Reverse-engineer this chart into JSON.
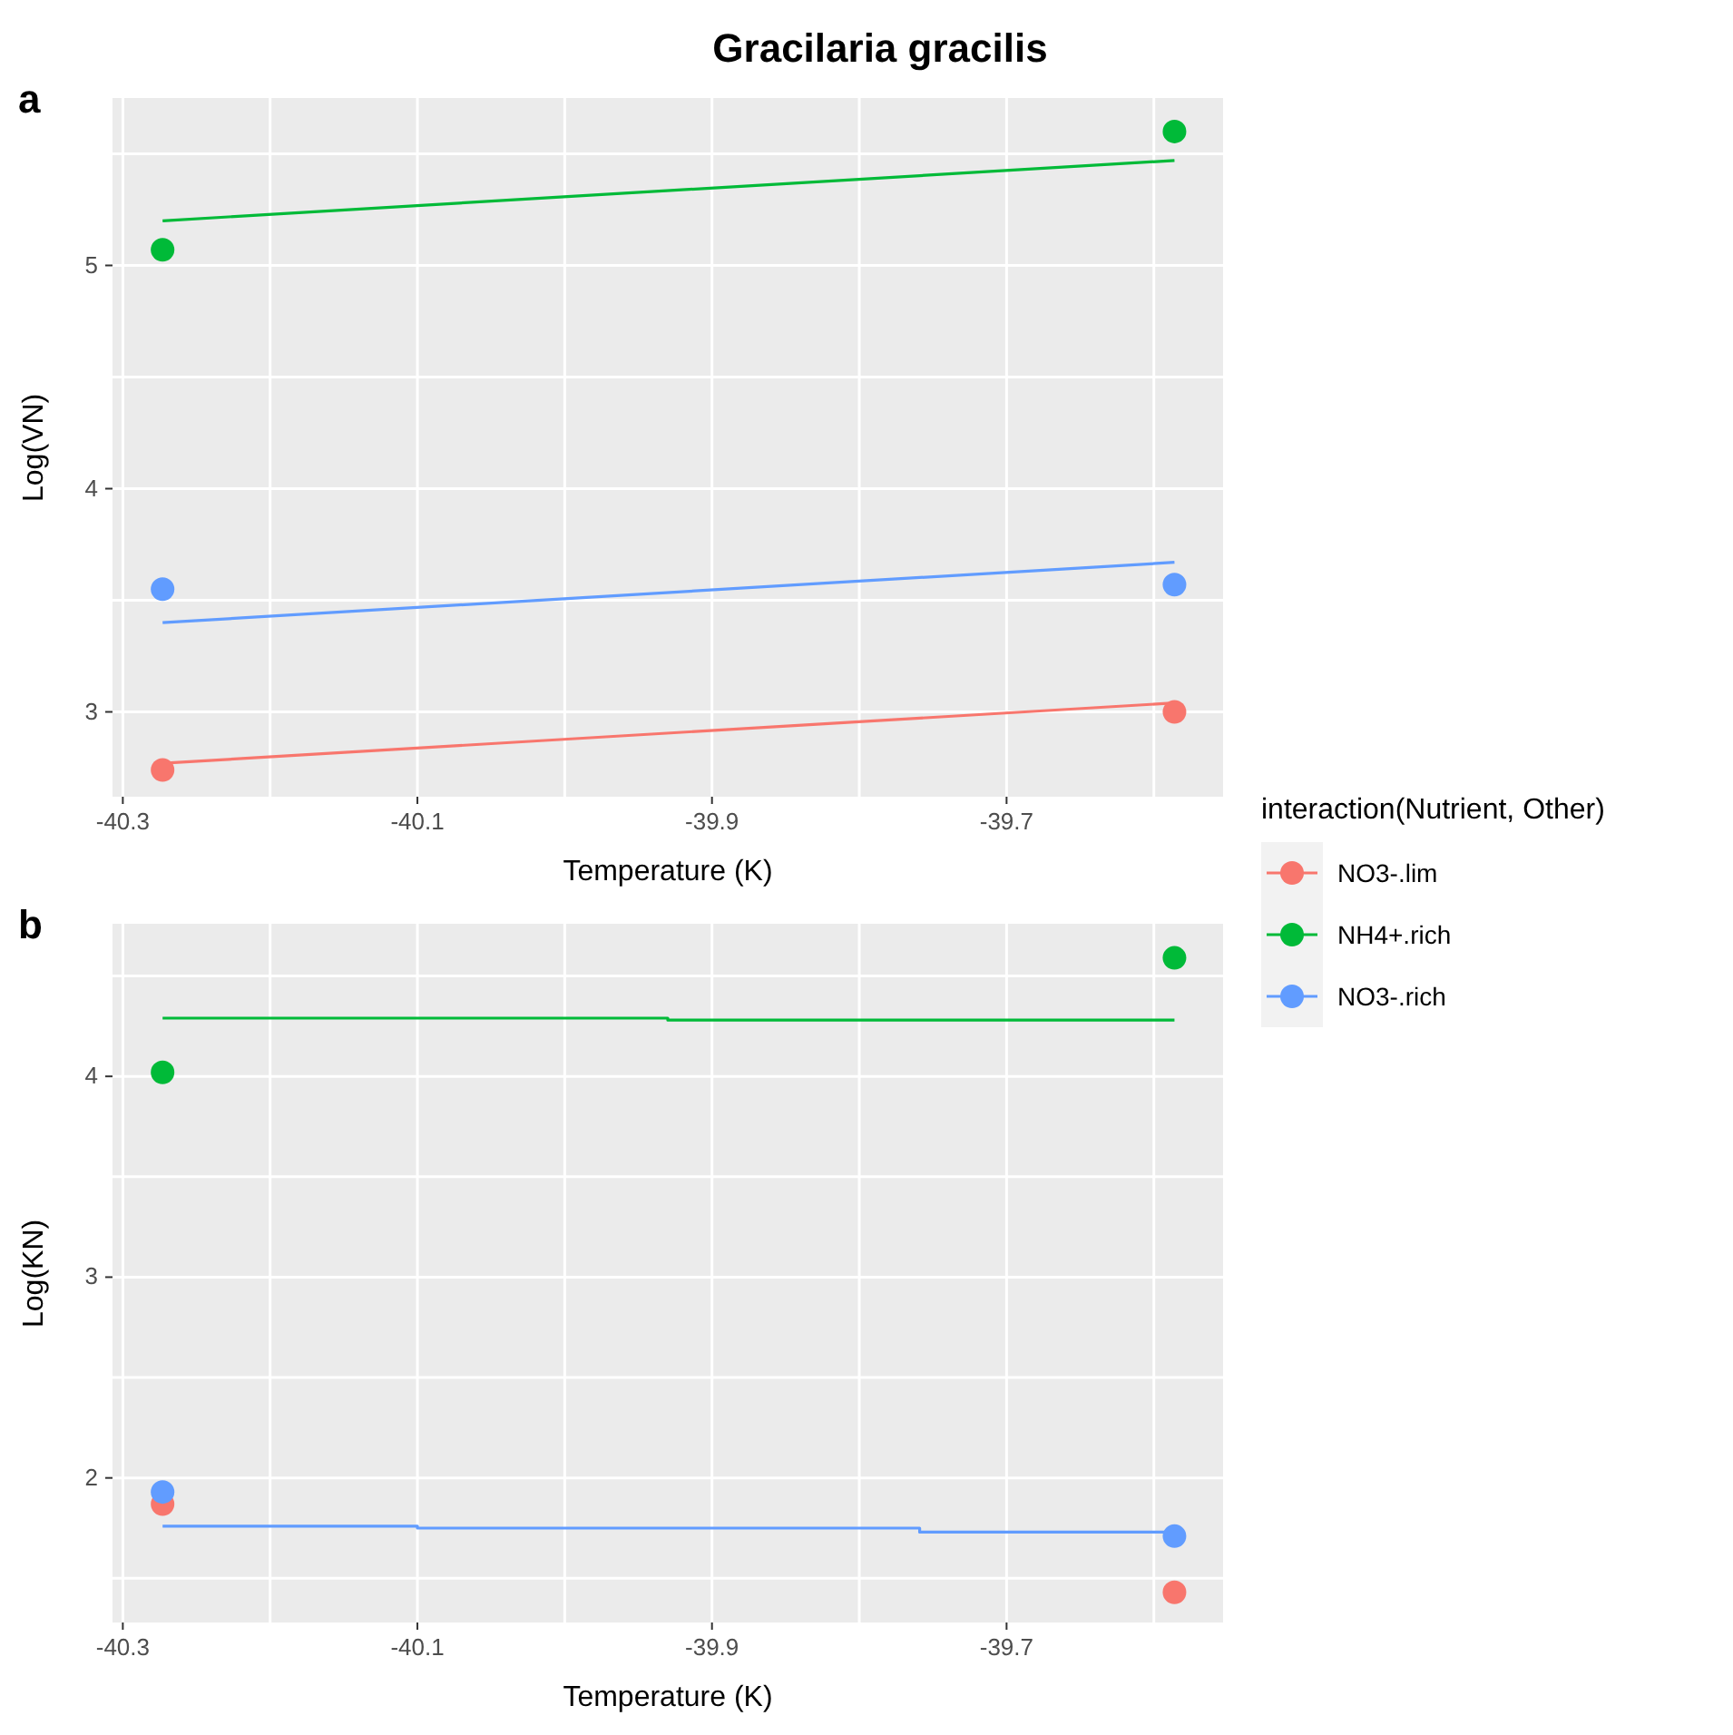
{
  "chart_data": [
    {
      "type": "scatter",
      "title": "Gracilaria gracilis",
      "annotations": [
        "a"
      ],
      "xlabel": "Temperature (K)",
      "ylabel": "Log(VN)",
      "legend_title": "interaction(Nutrient, Other)",
      "legend": "right",
      "grid": true,
      "xlim": [
        -40.307,
        -39.553
      ],
      "xticks": [
        -40.3,
        {
          "value": -40.2,
          "label": null
        },
        -40.1,
        {
          "value": -40.0,
          "label": null
        },
        -39.9,
        {
          "value": -39.8,
          "label": null
        },
        -39.7,
        {
          "value": -39.6,
          "label": null
        }
      ],
      "ylim": [
        2.62,
        5.75
      ],
      "yticks": [
        3,
        {
          "value": 3.5,
          "label": null
        },
        4,
        {
          "value": 4.5,
          "label": null
        },
        5,
        {
          "value": 5.5,
          "label": null
        }
      ],
      "series": [
        {
          "name": "NO3-.lim",
          "color": "#f8766d",
          "marker": "circle",
          "x": [
            -40.273,
            -39.586
          ],
          "values": [
            2.74,
            3.0
          ]
        },
        {
          "name": "NH4+.rich",
          "color": "#00ba38",
          "marker": "circle",
          "x": [
            -40.273,
            -39.586
          ],
          "values": [
            5.07,
            5.6
          ]
        },
        {
          "name": "NO3-.rich",
          "color": "#619cff",
          "marker": "circle",
          "x": [
            -40.273,
            -39.586
          ],
          "values": [
            3.55,
            3.57
          ]
        },
        {
          "type": "line",
          "color": "#f8766d",
          "x": [
            -40.273,
            -39.586
          ],
          "values": [
            2.77,
            3.04
          ]
        },
        {
          "type": "line",
          "color": "#00ba38",
          "x": [
            -40.273,
            -39.586
          ],
          "values": [
            5.2,
            5.47
          ]
        },
        {
          "type": "line",
          "color": "#619cff",
          "x": [
            -40.273,
            -39.586
          ],
          "values": [
            3.4,
            3.67
          ]
        }
      ]
    },
    {
      "type": "scatter",
      "annotations": [
        "b"
      ],
      "xlabel": "Temperature (K)",
      "ylabel": "Log(KN)",
      "grid": true,
      "xlim": [
        -40.307,
        -39.553
      ],
      "xticks": [
        -40.3,
        {
          "value": -40.2,
          "label": null
        },
        -40.1,
        {
          "value": -40.0,
          "label": null
        },
        -39.9,
        {
          "value": -39.8,
          "label": null
        },
        -39.7,
        {
          "value": -39.6,
          "label": null
        }
      ],
      "ylim": [
        1.28,
        4.76
      ],
      "yticks": [
        {
          "value": 1.5,
          "label": null
        },
        2,
        {
          "value": 2.5,
          "label": null
        },
        3,
        {
          "value": 3.5,
          "label": null
        },
        4,
        {
          "value": 4.5,
          "label": null
        }
      ],
      "series": [
        {
          "color": "#f8766d",
          "marker": "circle",
          "x": [
            -40.273,
            -39.586
          ],
          "values": [
            1.87,
            1.43
          ]
        },
        {
          "color": "#00ba38",
          "marker": "circle",
          "x": [
            -40.273,
            -39.586
          ],
          "values": [
            4.02,
            4.59
          ]
        },
        {
          "color": "#619cff",
          "marker": "circle",
          "x": [
            -40.273,
            -39.586
          ],
          "values": [
            1.93,
            1.71
          ]
        },
        {
          "type": "line",
          "color": "#00ba38",
          "x": [
            -40.273,
            -39.93,
            -39.93,
            -39.586
          ],
          "values": [
            4.29,
            4.29,
            4.28,
            4.28
          ]
        },
        {
          "type": "line",
          "color": "#619cff",
          "x": [
            -40.273,
            -40.1,
            -40.1,
            -39.759,
            -39.759,
            -39.586
          ],
          "values": [
            1.76,
            1.76,
            1.75,
            1.75,
            1.73,
            1.73
          ]
        }
      ]
    }
  ]
}
